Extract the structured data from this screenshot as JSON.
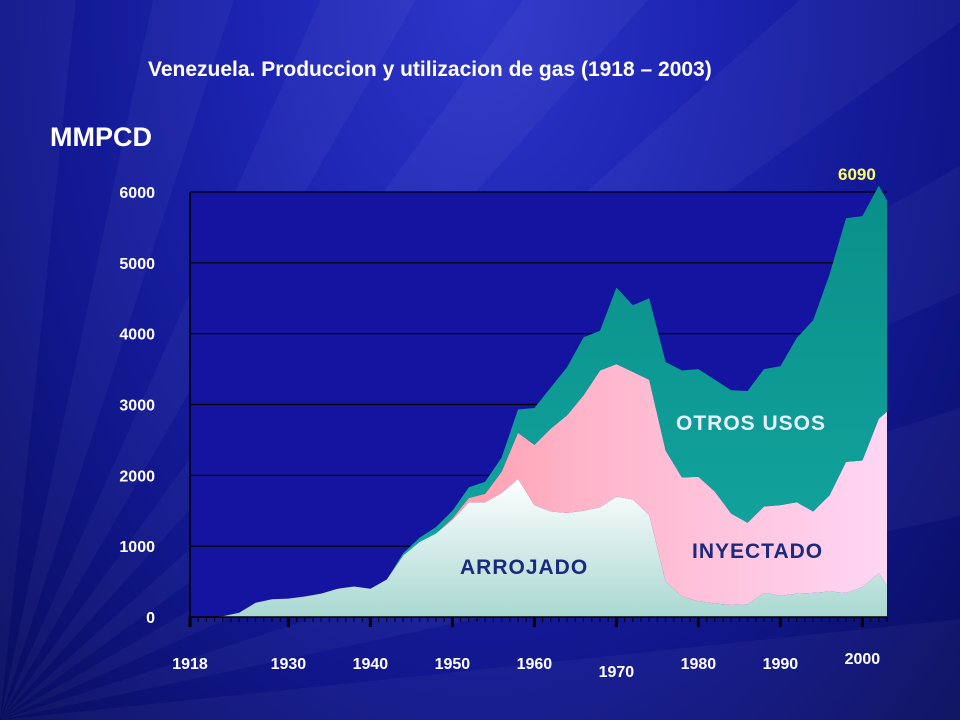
{
  "chart_data": {
    "type": "area",
    "stacked": true,
    "title": "Venezuela. Produccion y utilizacion de gas (1918 – 2003)",
    "ylabel": "MMPCD",
    "xlabel": "",
    "xlim": [
      1918,
      2003
    ],
    "ylim": [
      0,
      6000
    ],
    "grid": true,
    "y_ticks": [
      0,
      1000,
      2000,
      3000,
      4000,
      5000,
      6000
    ],
    "x_ticks": [
      1918,
      1930,
      1940,
      1950,
      1960,
      1970,
      1980,
      1990,
      2000
    ],
    "annotations": [
      {
        "text": "6090",
        "x": 2001,
        "y": 6090
      }
    ],
    "colors": {
      "arrojado": "#d8f0ec",
      "inyectado": "#ff8a8a",
      "otros": "#0e9a94"
    },
    "series": [
      {
        "name": "ARROJADO",
        "x": [
          1918,
          1920,
          1922,
          1924,
          1926,
          1928,
          1930,
          1932,
          1934,
          1936,
          1938,
          1940,
          1942,
          1944,
          1946,
          1948,
          1950,
          1952,
          1954,
          1956,
          1958,
          1960,
          1962,
          1964,
          1966,
          1968,
          1970,
          1972,
          1974,
          1976,
          1978,
          1980,
          1982,
          1984,
          1986,
          1988,
          1990,
          1992,
          1994,
          1996,
          1998,
          2000,
          2002,
          2003
        ],
        "values": [
          0,
          0,
          10,
          60,
          200,
          250,
          260,
          290,
          330,
          400,
          430,
          400,
          530,
          870,
          1060,
          1180,
          1370,
          1620,
          1620,
          1750,
          1950,
          1580,
          1490,
          1470,
          1500,
          1550,
          1700,
          1660,
          1440,
          500,
          290,
          220,
          190,
          170,
          180,
          340,
          300,
          330,
          340,
          360,
          340,
          420,
          620,
          450
        ]
      },
      {
        "name": "INYECTADO",
        "x": [
          1918,
          1920,
          1922,
          1924,
          1926,
          1928,
          1930,
          1932,
          1934,
          1936,
          1938,
          1940,
          1942,
          1944,
          1946,
          1948,
          1950,
          1952,
          1954,
          1956,
          1958,
          1960,
          1962,
          1964,
          1966,
          1968,
          1970,
          1972,
          1974,
          1976,
          1978,
          1980,
          1982,
          1984,
          1986,
          1988,
          1990,
          1992,
          1994,
          1996,
          1998,
          2000,
          2002,
          2003
        ],
        "values": [
          0,
          0,
          0,
          0,
          0,
          0,
          0,
          0,
          0,
          0,
          0,
          0,
          0,
          0,
          0,
          0,
          20,
          60,
          120,
          300,
          650,
          850,
          1170,
          1380,
          1630,
          1930,
          1870,
          1800,
          1910,
          1850,
          1680,
          1760,
          1580,
          1290,
          1150,
          1220,
          1280,
          1290,
          1150,
          1360,
          1850,
          1790,
          2180,
          2450
        ]
      },
      {
        "name": "OTROS USOS",
        "x": [
          1918,
          1920,
          1922,
          1924,
          1926,
          1928,
          1930,
          1932,
          1934,
          1936,
          1938,
          1940,
          1942,
          1944,
          1946,
          1948,
          1950,
          1952,
          1954,
          1956,
          1958,
          1960,
          1962,
          1964,
          1966,
          1968,
          1970,
          1972,
          1974,
          1976,
          1978,
          1980,
          1982,
          1984,
          1986,
          1988,
          1990,
          1992,
          1994,
          1996,
          1998,
          2000,
          2002,
          2003
        ],
        "values": [
          0,
          0,
          0,
          0,
          0,
          0,
          0,
          0,
          0,
          0,
          0,
          0,
          0,
          30,
          60,
          90,
          110,
          150,
          170,
          200,
          330,
          520,
          580,
          680,
          820,
          560,
          1080,
          940,
          1150,
          1250,
          1510,
          1520,
          1580,
          1740,
          1860,
          1940,
          1960,
          2320,
          2700,
          3120,
          3440,
          3450,
          3290,
          2980
        ]
      }
    ]
  }
}
